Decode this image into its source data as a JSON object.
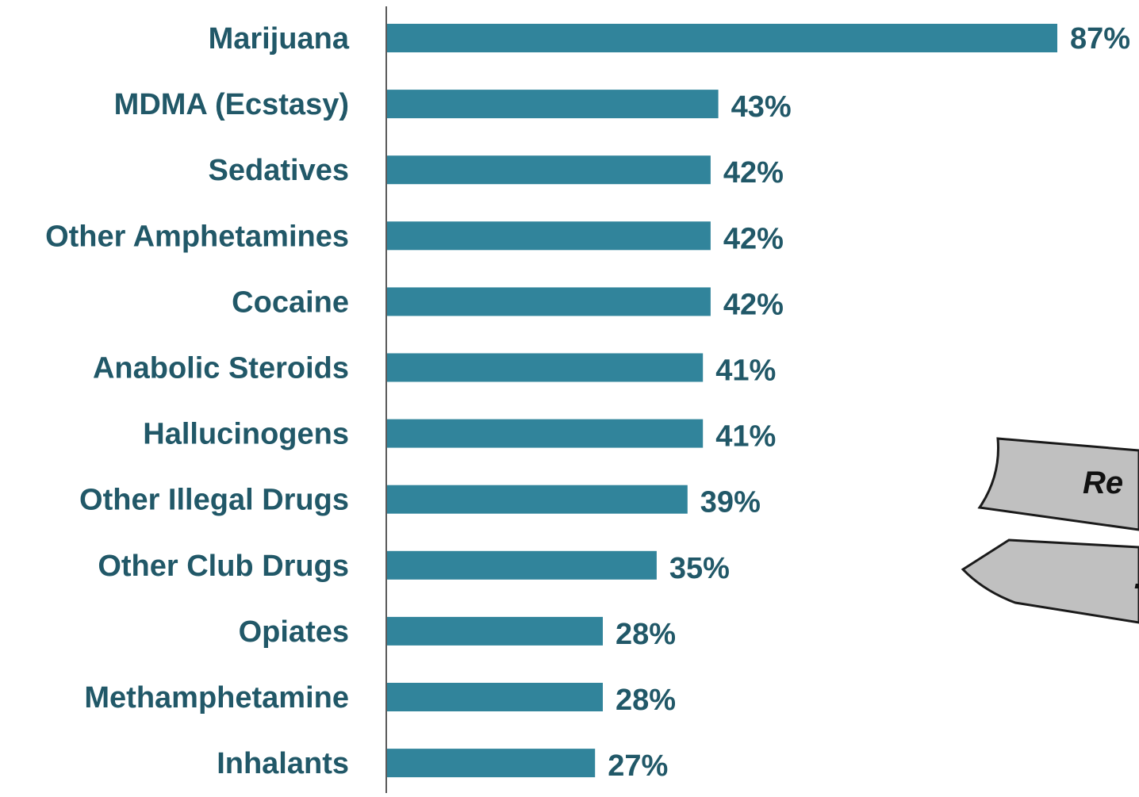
{
  "colors": {
    "bar": "#31849b",
    "label": "#215868",
    "axis": "#595959",
    "sign_fill": "#c0c0c0",
    "sign_stroke": "#1a1a1a"
  },
  "chart_data": {
    "type": "bar",
    "orientation": "horizontal",
    "categories": [
      "Marijuana",
      "MDMA (Ecstasy)",
      "Sedatives",
      "Other Amphetamines",
      "Cocaine",
      "Anabolic Steroids",
      "Hallucinogens",
      "Other Illegal Drugs",
      "Other Club Drugs",
      "Opiates",
      "Methamphetamine",
      "Inhalants"
    ],
    "values": [
      87,
      43,
      42,
      42,
      42,
      41,
      41,
      39,
      35,
      28,
      28,
      27
    ],
    "value_labels": [
      "87%",
      "43%",
      "42%",
      "42%",
      "42%",
      "41%",
      "41%",
      "39%",
      "35%",
      "28%",
      "28%",
      "27%"
    ],
    "xlim": [
      0,
      87
    ],
    "grid": false,
    "legend": "none"
  },
  "decoration": {
    "sign_icon": "direction-sign-icon",
    "sign_text_top": "Re",
    "sign_text_bottom": "…"
  }
}
